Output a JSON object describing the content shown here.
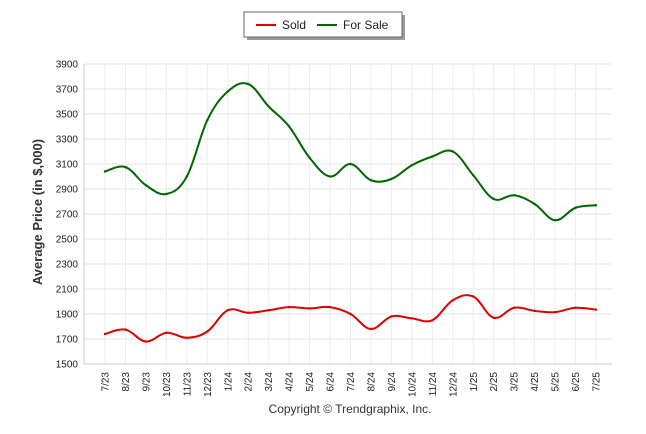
{
  "chart_data": {
    "type": "line",
    "ylabel": "Average Price (in $,000)",
    "ylim": [
      1500,
      3900
    ],
    "yticks": [
      1500,
      1700,
      1900,
      2100,
      2300,
      2500,
      2700,
      2900,
      3100,
      3300,
      3500,
      3700,
      3900
    ],
    "grid": true,
    "legend_placement": "top-center",
    "categories": [
      "7/23",
      "8/23",
      "9/23",
      "10/23",
      "11/23",
      "12/23",
      "1/24",
      "2/24",
      "3/24",
      "4/24",
      "5/24",
      "6/24",
      "7/24",
      "8/24",
      "9/24",
      "10/24",
      "11/24",
      "12/24",
      "1/25",
      "2/25",
      "3/25",
      "4/25",
      "5/25",
      "6/25",
      "7/25"
    ],
    "series": [
      {
        "name": "Sold",
        "color": "#dd0000",
        "values": [
          1740,
          1775,
          1680,
          1750,
          1710,
          1760,
          1930,
          1910,
          1930,
          1955,
          1945,
          1955,
          1900,
          1780,
          1880,
          1865,
          1850,
          2010,
          2040,
          1870,
          1950,
          1925,
          1915,
          1950,
          1935
        ]
      },
      {
        "name": "For Sale",
        "color": "#006600",
        "values": [
          3040,
          3075,
          2930,
          2860,
          3000,
          3450,
          3680,
          3740,
          3560,
          3400,
          3150,
          3000,
          3100,
          2970,
          2980,
          3090,
          3160,
          3200,
          3010,
          2820,
          2850,
          2780,
          2650,
          2750,
          2770
        ]
      }
    ],
    "footer": "Copyright © Trendgraphix, Inc."
  }
}
